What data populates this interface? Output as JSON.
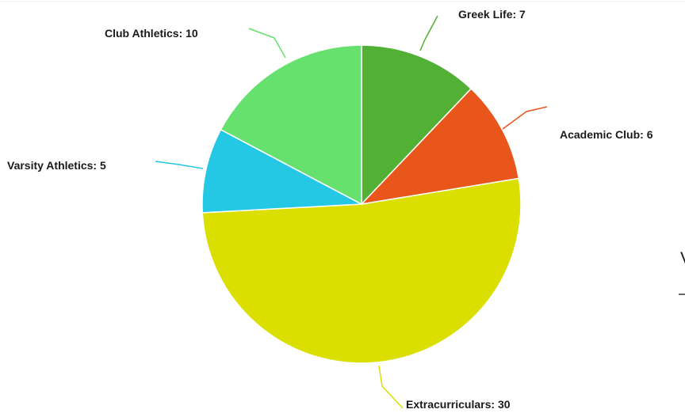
{
  "chart_data": {
    "type": "pie",
    "title": "",
    "categories": [
      "Greek Life",
      "Academic Club",
      "Extracurriculars",
      "Varsity Athletics",
      "Club Athletics"
    ],
    "values": [
      7,
      6,
      30,
      5,
      10
    ],
    "labels": [
      "Greek Life: 7",
      "Academic Club: 6",
      "Extracurriculars: 30",
      "Varsity Athletics: 5",
      "Club Athletics: 10"
    ],
    "colors": [
      "#52b035",
      "#e8561b",
      "#dbdf00",
      "#24c8e4",
      "#66e06e"
    ],
    "start_angle_deg": 0,
    "direction": "clockwise",
    "legend": "none"
  },
  "edge_fragment": {
    "text": "V"
  }
}
